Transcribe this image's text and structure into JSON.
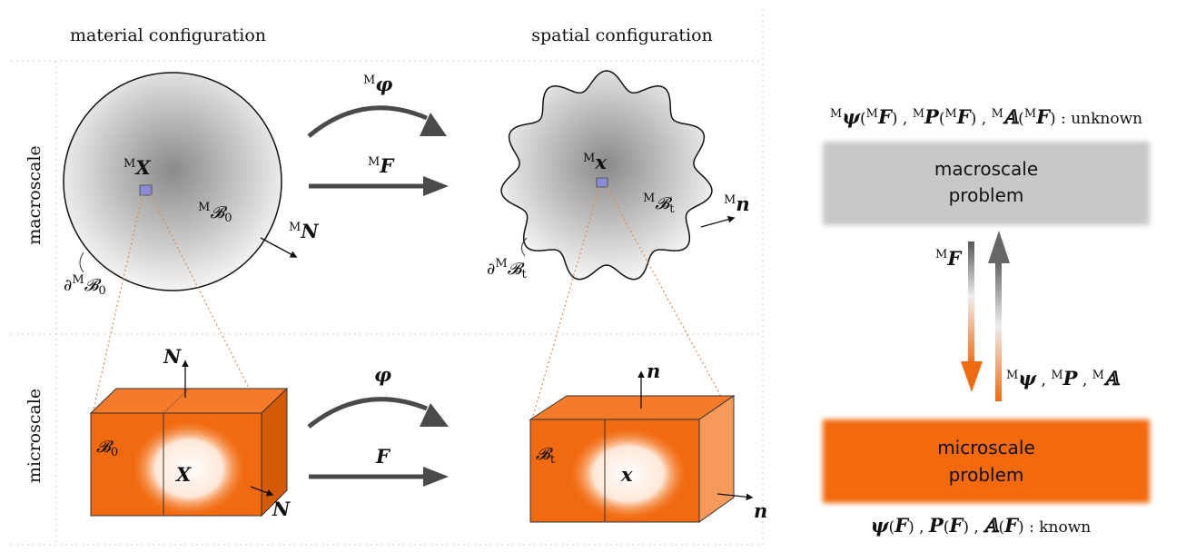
{
  "headers": {
    "material": "material configuration",
    "spatial": "spatial configuration"
  },
  "rows": {
    "macro": "macroscale",
    "micro": "microscale"
  },
  "macro": {
    "phi": {
      "sup": "M",
      "sym": "φ"
    },
    "F": {
      "sup": "M",
      "sym": "F"
    },
    "X": {
      "sup": "M",
      "sym": "X"
    },
    "x": {
      "sup": "M",
      "sym": "x"
    },
    "B0": {
      "sup": "M",
      "sym": "𝓑",
      "sub": "0"
    },
    "Bt": {
      "sup": "M",
      "sym": "𝓑",
      "sub": "t"
    },
    "dB0": {
      "pre": "∂",
      "sup": "M",
      "sym": "𝓑",
      "sub": "0"
    },
    "dBt": {
      "pre": "∂",
      "sup": "M",
      "sym": "𝓑",
      "sub": "t"
    },
    "N": {
      "sup": "M",
      "sym": "N"
    },
    "n": {
      "sup": "M",
      "sym": "n"
    }
  },
  "micro": {
    "phi": "φ",
    "F": "F",
    "X": "X",
    "x": "x",
    "B0": {
      "sym": "𝓑",
      "sub": "0"
    },
    "Bt": {
      "sym": "𝓑",
      "sub": "t"
    },
    "N_top": "N",
    "N_side": "N",
    "n_top": "n",
    "n_side": "n"
  },
  "right_panel": {
    "unknown": {
      "items": [
        {
          "sup": "M",
          "sym": "ψ",
          "arg_sup": "M",
          "arg": "F"
        },
        {
          "sup": "M",
          "sym": "P",
          "arg_sup": "M",
          "arg": "F"
        },
        {
          "sup": "M",
          "sym": "𝔸",
          "arg_sup": "M",
          "arg": "F"
        }
      ],
      "status": ": unknown"
    },
    "macro_box": {
      "line1": "macroscale",
      "line2": "problem",
      "color": "#c8c8c8"
    },
    "micro_box": {
      "line1": "microscale",
      "line2": "problem",
      "color": "#f26a10"
    },
    "down_label": {
      "sup": "M",
      "sym": "F"
    },
    "up_label": {
      "items": [
        {
          "sup": "M",
          "sym": "ψ"
        },
        {
          "sup": "M",
          "sym": "P"
        },
        {
          "sup": "M",
          "sym": "𝔸"
        }
      ]
    },
    "known": {
      "items": [
        {
          "sym": "ψ",
          "arg": "F"
        },
        {
          "sym": "P",
          "arg": "F"
        },
        {
          "sym": "𝔸",
          "arg": "F"
        }
      ],
      "status": ": known"
    }
  },
  "colors": {
    "orange": "#f26a10",
    "orange_dark": "#d45a08",
    "grey_arrow": "#555555",
    "dotted_line": "#d88a55"
  }
}
